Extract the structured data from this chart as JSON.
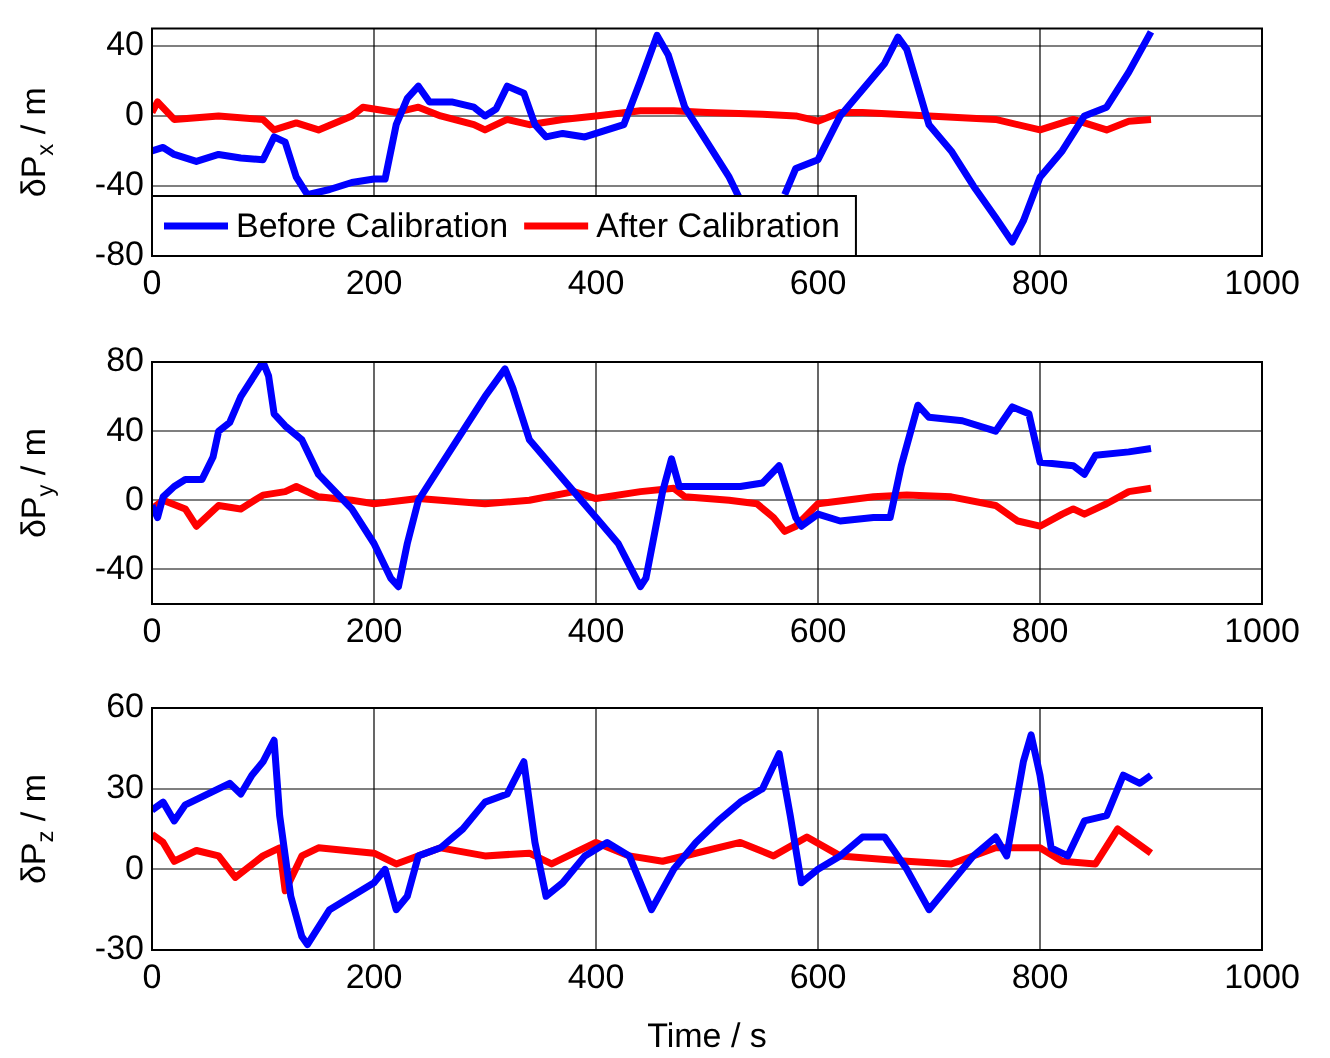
{
  "chart_data": [
    {
      "type": "line",
      "ylabel": "δP$_{x}$ / m",
      "xlim": [
        0,
        1000
      ],
      "xticks": [
        0,
        200,
        400,
        600,
        800,
        1000
      ],
      "ylim": [
        -80,
        50
      ],
      "yticks": [
        -80,
        -40,
        0,
        40
      ],
      "grid": true,
      "legend": "bottom left",
      "series": [
        {
          "name": "Before Calibration",
          "color": "#0000ff",
          "x": [
            0,
            10,
            20,
            40,
            60,
            80,
            100,
            110,
            120,
            130,
            140,
            160,
            180,
            200,
            210,
            220,
            230,
            240,
            250,
            270,
            290,
            300,
            310,
            320,
            335,
            345,
            355,
            370,
            390,
            410,
            425,
            440,
            455,
            465,
            480,
            500,
            520,
            530,
            545,
            565,
            570,
            580,
            600,
            620,
            640,
            660,
            672,
            680,
            700,
            720,
            740,
            760,
            775,
            785,
            800,
            820,
            840,
            860,
            880,
            900
          ],
          "values": [
            -20,
            -18,
            -22,
            -26,
            -22,
            -24,
            -25,
            -12,
            -15,
            -35,
            -45,
            -42,
            -38,
            -36,
            -36,
            -5,
            10,
            17,
            8,
            8,
            5,
            0,
            4,
            17,
            13,
            -5,
            -12,
            -10,
            -12,
            -8,
            -5,
            20,
            46,
            35,
            5,
            -15,
            -35,
            -48,
            null,
            null,
            -45,
            -30,
            -25,
            0,
            15,
            30,
            45,
            38,
            -5,
            -20,
            -40,
            -58,
            -72,
            -60,
            -35,
            -20,
            0,
            5,
            25,
            48
          ]
        },
        {
          "name": "After Calibration",
          "color": "#ff0000",
          "x": [
            0,
            5,
            20,
            60,
            100,
            110,
            130,
            150,
            180,
            190,
            220,
            240,
            260,
            290,
            300,
            320,
            340,
            370,
            400,
            440,
            470,
            500,
            550,
            580,
            600,
            620,
            640,
            700,
            760,
            800,
            830,
            860,
            880,
            900
          ],
          "values": [
            2,
            8,
            -2,
            0,
            -2,
            -8,
            -4,
            -8,
            0,
            5,
            2,
            5,
            0,
            -5,
            -8,
            -2,
            -5,
            -2,
            0,
            3,
            3,
            2,
            1,
            0,
            -3,
            2,
            2,
            0,
            -2,
            -8,
            -2,
            -8,
            -3,
            -2
          ]
        }
      ]
    },
    {
      "type": "line",
      "ylabel": "δP$_{y}$ / m",
      "xlim": [
        0,
        1000
      ],
      "xticks": [
        0,
        200,
        400,
        600,
        800,
        1000
      ],
      "ylim": [
        -60,
        80
      ],
      "yticks": [
        -40,
        0,
        40,
        80
      ],
      "grid": true,
      "series": [
        {
          "color": "#0000ff",
          "x": [
            0,
            5,
            10,
            20,
            30,
            45,
            55,
            60,
            70,
            80,
            95,
            100,
            105,
            110,
            120,
            135,
            150,
            165,
            180,
            200,
            215,
            222,
            230,
            240,
            260,
            280,
            300,
            318,
            325,
            340,
            360,
            380,
            400,
            420,
            440,
            445,
            460,
            468,
            475,
            500,
            530,
            550,
            565,
            580,
            585,
            600,
            620,
            650,
            665,
            675,
            690,
            700,
            730,
            760,
            775,
            790,
            800,
            830,
            840,
            850,
            880,
            900
          ],
          "values": [
            -3,
            -10,
            2,
            8,
            12,
            12,
            25,
            40,
            45,
            60,
            75,
            80,
            72,
            50,
            43,
            35,
            15,
            5,
            -5,
            -25,
            -45,
            -50,
            -25,
            0,
            20,
            40,
            60,
            76,
            65,
            35,
            20,
            5,
            -10,
            -25,
            -50,
            -45,
            5,
            24,
            8,
            8,
            8,
            10,
            20,
            -10,
            -15,
            -8,
            -12,
            -10,
            -10,
            20,
            55,
            48,
            46,
            40,
            54,
            50,
            22,
            20,
            15,
            26,
            28,
            30
          ]
        },
        {
          "color": "#ff0000",
          "x": [
            0,
            10,
            30,
            40,
            60,
            80,
            100,
            120,
            130,
            150,
            180,
            200,
            240,
            300,
            340,
            380,
            400,
            440,
            470,
            480,
            520,
            545,
            560,
            570,
            580,
            600,
            650,
            680,
            720,
            760,
            780,
            800,
            820,
            830,
            840,
            860,
            880,
            900
          ],
          "values": [
            -5,
            0,
            -5,
            -15,
            -3,
            -5,
            3,
            5,
            8,
            2,
            0,
            -2,
            1,
            -2,
            0,
            5,
            1,
            5,
            7,
            2,
            0,
            -2,
            -10,
            -18,
            -15,
            -2,
            2,
            3,
            2,
            -3,
            -12,
            -15,
            -8,
            -5,
            -8,
            -2,
            5,
            7
          ]
        }
      ]
    },
    {
      "type": "line",
      "ylabel": "δP$_{z}$ / m",
      "xlabel": "Time / s",
      "xlim": [
        0,
        1000
      ],
      "xticks": [
        0,
        200,
        400,
        600,
        800,
        1000
      ],
      "ylim": [
        -30,
        60
      ],
      "yticks": [
        -30,
        0,
        30,
        60
      ],
      "grid": true,
      "series": [
        {
          "color": "#0000ff",
          "x": [
            0,
            10,
            20,
            30,
            50,
            70,
            80,
            90,
            100,
            110,
            115,
            125,
            135,
            140,
            160,
            180,
            200,
            210,
            220,
            230,
            240,
            260,
            280,
            300,
            320,
            335,
            345,
            355,
            370,
            390,
            410,
            430,
            440,
            450,
            470,
            490,
            510,
            530,
            550,
            565,
            575,
            585,
            600,
            620,
            640,
            660,
            680,
            700,
            720,
            740,
            760,
            770,
            785,
            792,
            800,
            810,
            825,
            840,
            860,
            875,
            890,
            900
          ],
          "values": [
            22,
            25,
            18,
            24,
            28,
            32,
            28,
            35,
            40,
            48,
            20,
            -10,
            -25,
            -28,
            -15,
            -10,
            -5,
            0,
            -15,
            -10,
            5,
            8,
            15,
            25,
            28,
            40,
            10,
            -10,
            -5,
            5,
            10,
            5,
            -5,
            -15,
            0,
            10,
            18,
            25,
            30,
            43,
            20,
            -5,
            0,
            5,
            12,
            12,
            0,
            -15,
            -5,
            5,
            12,
            5,
            40,
            50,
            35,
            8,
            5,
            18,
            20,
            35,
            32,
            35
          ]
        },
        {
          "color": "#ff0000",
          "x": [
            0,
            10,
            20,
            40,
            60,
            75,
            100,
            115,
            120,
            135,
            150,
            200,
            220,
            260,
            300,
            340,
            360,
            400,
            430,
            460,
            500,
            530,
            560,
            590,
            620,
            680,
            720,
            760,
            800,
            820,
            850,
            870,
            880,
            900
          ],
          "values": [
            13,
            10,
            3,
            7,
            5,
            -3,
            5,
            8,
            -8,
            5,
            8,
            6,
            2,
            8,
            5,
            6,
            2,
            10,
            5,
            3,
            7,
            10,
            5,
            12,
            5,
            3,
            2,
            8,
            8,
            3,
            2,
            15,
            12,
            6
          ]
        }
      ]
    }
  ]
}
